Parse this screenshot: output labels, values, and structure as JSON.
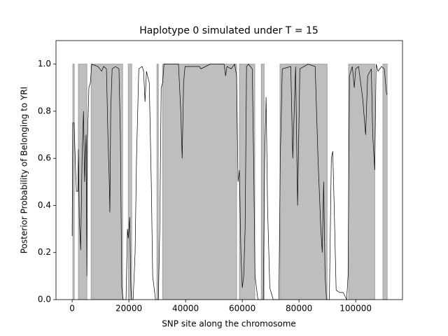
{
  "chart_data": {
    "type": "line",
    "title": "Haplotype 0 simulated under T =  15",
    "x_label": "SNP site along the chromosome",
    "y_label": "Posterior Probability of Belonging to YRI",
    "xlim": [
      -5700,
      116500
    ],
    "ylim": [
      0,
      1.1
    ],
    "xticks": [
      0,
      20000,
      40000,
      60000,
      80000,
      100000
    ],
    "yticks": [
      {
        "value": 0,
        "label": "0.0"
      },
      {
        "value": 0.2,
        "label": "0.2"
      },
      {
        "value": 0.4,
        "label": "0.4"
      },
      {
        "value": 0.6,
        "label": "0.6"
      },
      {
        "value": 0.8,
        "label": "0.8"
      },
      {
        "value": 1,
        "label": "1.0"
      }
    ],
    "regions": [
      [
        250,
        750
      ],
      [
        2200,
        5200
      ],
      [
        6700,
        17800
      ],
      [
        19800,
        21000
      ],
      [
        29900,
        30400
      ],
      [
        31900,
        58000
      ],
      [
        59000,
        64400
      ],
      [
        66700,
        67700
      ],
      [
        73300,
        89900
      ],
      [
        97500,
        106700
      ],
      [
        109600,
        111100
      ]
    ],
    "region_color": "#bebebe",
    "series": [
      {
        "color": "#000000",
        "x": [
          0,
          200,
          700,
          1200,
          1500,
          2000,
          2200,
          2500,
          3000,
          3500,
          4000,
          4400,
          4900,
          5200,
          5400,
          5900,
          6400,
          6900,
          9100,
          10400,
          11100,
          12100,
          12600,
          13100,
          13300,
          13600,
          14100,
          15300,
          16500,
          17000,
          17500,
          18000,
          19000,
          19500,
          19800,
          20300,
          20700,
          21000,
          21500,
          22200,
          22700,
          23500,
          24700,
          25200,
          25700,
          26200,
          27200,
          27900,
          28400,
          29400,
          30400,
          30900,
          31400,
          31900,
          32400,
          37500,
          38300,
          38800,
          39300,
          39800,
          44900,
          45400,
          48700,
          53600,
          54100,
          54600,
          56100,
          57300,
          58000,
          58500,
          59000,
          59500,
          60000,
          60500,
          61000,
          61500,
          62200,
          63500,
          64000,
          64500,
          65500,
          67400,
          67900,
          68400,
          68900,
          69700,
          70900,
          72900,
          73400,
          74100,
          77100,
          77800,
          78800,
          79500,
          80300,
          83200,
          85700,
          86700,
          87700,
          88200,
          88700,
          89200,
          89700,
          90700,
          91400,
          91900,
          92400,
          93100,
          94400,
          95600,
          96800,
          97300,
          97800,
          98800,
          99500,
          100000,
          101000,
          102500,
          103500,
          104200,
          105500,
          106000,
          106700,
          107200,
          107900,
          109100,
          110100,
          110900
        ],
        "values": [
          0.27,
          0.75,
          0.75,
          0.55,
          0.46,
          0.46,
          0.64,
          0.35,
          0.21,
          0.6,
          0.8,
          0.5,
          0.7,
          0.1,
          0.68,
          0.9,
          0.92,
          1.0,
          0.99,
          0.97,
          0.99,
          0.98,
          0.7,
          0.5,
          0.37,
          0.8,
          0.98,
          0.99,
          0.98,
          0.7,
          0.05,
          0.0,
          0.0,
          0.3,
          0.26,
          0.35,
          0.05,
          0.0,
          0.0,
          0.2,
          0.6,
          0.98,
          0.99,
          0.97,
          0.84,
          0.97,
          0.92,
          0.5,
          0.1,
          0.0,
          0.0,
          0.3,
          0.9,
          0.92,
          1.0,
          1.0,
          0.8,
          0.6,
          0.92,
          0.99,
          0.99,
          0.98,
          1.0,
          1.0,
          0.95,
          0.99,
          0.98,
          1.0,
          0.95,
          0.5,
          0.55,
          0.2,
          0.05,
          0.1,
          0.3,
          0.99,
          1.0,
          0.98,
          0.6,
          0.1,
          0.0,
          0.0,
          0.6,
          0.86,
          0.4,
          0.05,
          0.0,
          0.0,
          0.6,
          0.98,
          0.99,
          0.6,
          0.99,
          0.4,
          0.98,
          1.0,
          0.99,
          0.6,
          0.3,
          0.2,
          0.5,
          0.1,
          0.0,
          0.0,
          0.6,
          0.63,
          0.4,
          0.04,
          0.03,
          0.03,
          0.0,
          0.1,
          0.95,
          0.99,
          0.9,
          0.98,
          0.99,
          0.85,
          0.7,
          0.95,
          0.98,
          0.7,
          0.55,
          1.0,
          0.97,
          0.99,
          0.98,
          0.87
        ]
      }
    ]
  }
}
